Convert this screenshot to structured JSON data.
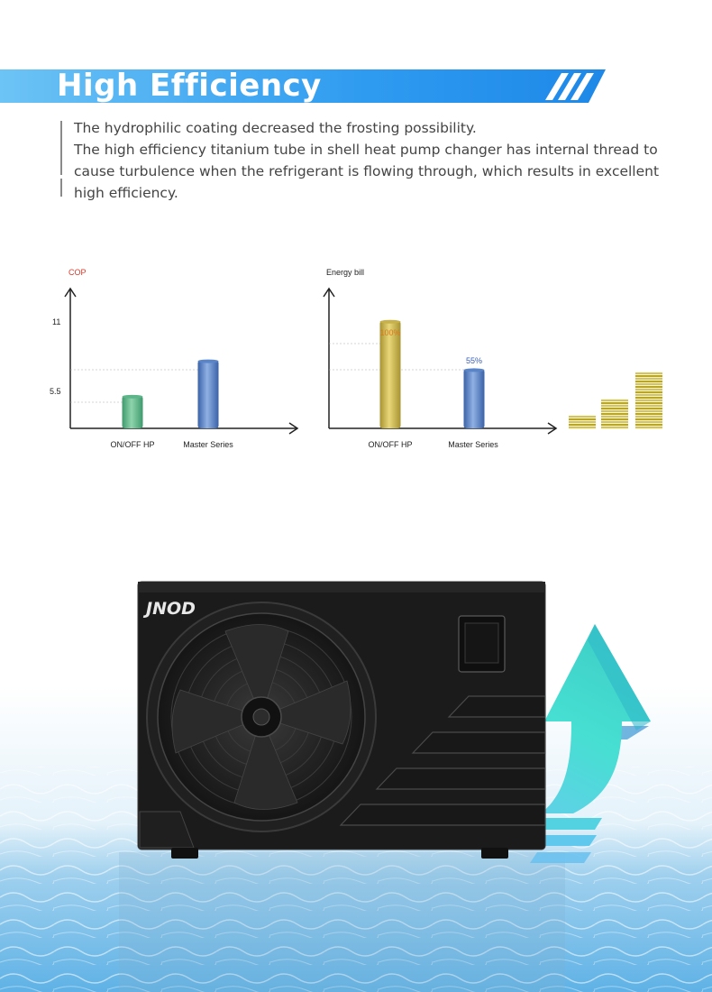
{
  "header": {
    "title": "High Efficiency"
  },
  "intro": {
    "line1": "The hydrophilic coating decreased the frosting possibility.",
    "line2": "The high efficiency titanium tube in shell heat pump changer has internal thread to cause turbulence when the refrigerant is flowing through, which results in excellent high efficiency."
  },
  "chart_data": [
    {
      "type": "bar",
      "title": "",
      "xlabel": "",
      "ylabel": "COP",
      "categories": [
        "ON/OFF HP",
        "Master Series"
      ],
      "values": [
        3.5,
        7.3
      ],
      "yticks": [
        "11",
        "5.5"
      ],
      "ylim": [
        0,
        15
      ],
      "colors": [
        "#5fb58a",
        "#5a84c8"
      ],
      "grid": false
    },
    {
      "type": "bar",
      "title": "",
      "xlabel": "",
      "ylabel": "Energy bill",
      "categories": [
        "ON/OFF HP",
        "Master Series"
      ],
      "values": [
        100,
        55
      ],
      "data_labels": [
        "100%",
        "55%"
      ],
      "ylim": [
        0,
        130
      ],
      "colors": [
        "#c7b14a",
        "#5a84c8"
      ],
      "label_colors": [
        "#d9771f",
        "#3a5fb5"
      ],
      "grid": false
    }
  ],
  "colors": {
    "banner": "#2e9df0",
    "ylabel_cop": "#d93a2b",
    "coin": "#c8b63a"
  },
  "product": {
    "brand": "JNOD"
  }
}
